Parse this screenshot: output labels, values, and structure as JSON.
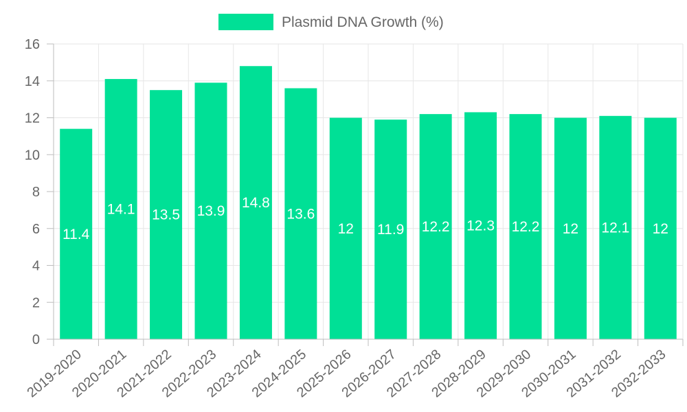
{
  "chart_data": {
    "type": "bar",
    "title": "",
    "xlabel": "",
    "ylabel": "",
    "categories": [
      "2019-2020",
      "2020-2021",
      "2021-2022",
      "2022-2023",
      "2023-2024",
      "2024-2025",
      "2025-2026",
      "2026-2027",
      "2027-2028",
      "2028-2029",
      "2029-2030",
      "2030-2031",
      "2031-2032",
      "2032-2033"
    ],
    "series": [
      {
        "name": "Plasmid DNA Growth (%)",
        "values": [
          11.4,
          14.1,
          13.5,
          13.9,
          14.8,
          13.6,
          12,
          11.9,
          12.2,
          12.3,
          12.2,
          12,
          12.1,
          12
        ],
        "labels": [
          "11.4",
          "14.1",
          "13.5",
          "13.9",
          "14.8",
          "13.6",
          "12",
          "11.9",
          "12.2",
          "12.3",
          "12.2",
          "12",
          "12.1",
          "12"
        ]
      }
    ],
    "ylim": [
      0,
      16
    ],
    "yticks": [
      "0",
      "2",
      "4",
      "6",
      "8",
      "10",
      "12",
      "14",
      "16"
    ],
    "legend_position": "top",
    "grid": true,
    "colors": {
      "bar": "#00e096",
      "grid": "#e6e6e6",
      "text": "#666666",
      "label": "#ffffff"
    }
  }
}
